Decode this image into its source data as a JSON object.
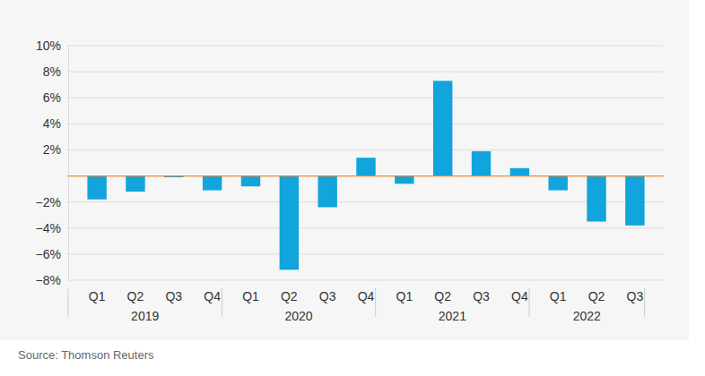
{
  "chart_data": {
    "type": "bar",
    "categories": [
      "Q1",
      "Q2",
      "Q3",
      "Q4",
      "Q1",
      "Q2",
      "Q3",
      "Q4",
      "Q1",
      "Q2",
      "Q3",
      "Q4",
      "Q1",
      "Q2",
      "Q3"
    ],
    "groups": [
      "2019",
      "2019",
      "2019",
      "2019",
      "2020",
      "2020",
      "2020",
      "2020",
      "2021",
      "2021",
      "2021",
      "2021",
      "2022",
      "2022",
      "2022"
    ],
    "values": [
      -1.8,
      -1.2,
      -0.1,
      -1.1,
      -0.8,
      -7.2,
      -2.4,
      1.4,
      -0.6,
      7.3,
      1.9,
      0.6,
      -1.1,
      -3.5,
      -3.8
    ],
    "color": "#12a4dc",
    "ylim": [
      -8,
      10
    ],
    "yticks": [
      {
        "value": -8,
        "label": "−8%"
      },
      {
        "value": -6,
        "label": "−6%"
      },
      {
        "value": -4,
        "label": "−4%"
      },
      {
        "value": -2,
        "label": "−2%"
      },
      {
        "value": 2,
        "label": "2%"
      },
      {
        "value": 4,
        "label": "4%"
      },
      {
        "value": 6,
        "label": "6%"
      },
      {
        "value": 8,
        "label": "8%"
      },
      {
        "value": 10,
        "label": "10%"
      }
    ],
    "grid": true,
    "source": "Source: Thomson Reuters"
  }
}
